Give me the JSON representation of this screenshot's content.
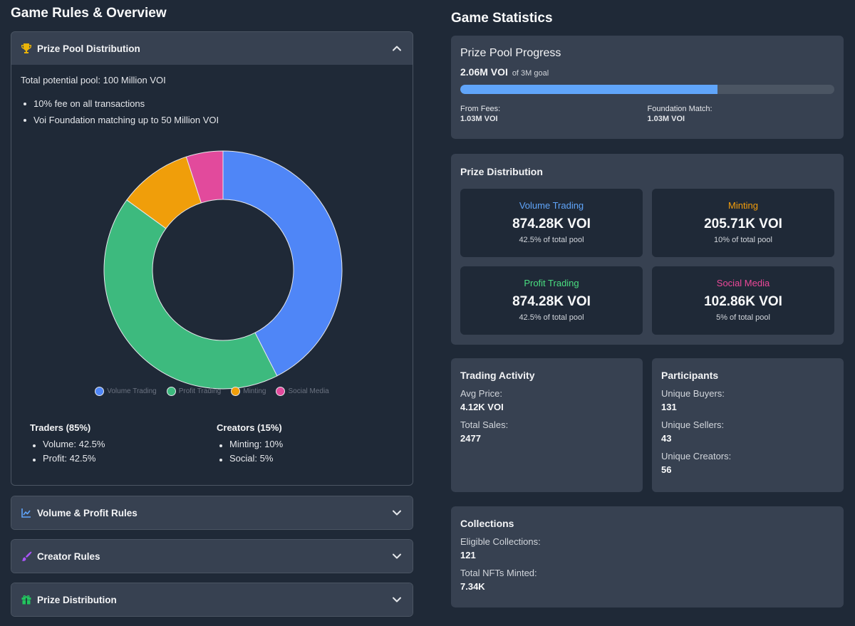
{
  "left": {
    "heading": "Game Rules & Overview",
    "prize_pool_section": {
      "title": "Prize Pool Distribution",
      "total_text": "Total potential pool: 100 Million VOI",
      "bullets": [
        "10% fee on all transactions",
        "Voi Foundation matching up to 50 Million VOI"
      ],
      "traders": {
        "title": "Traders (85%)",
        "items": [
          "Volume: 42.5%",
          "Profit: 42.5%"
        ]
      },
      "creators": {
        "title": "Creators (15%)",
        "items": [
          "Minting: 10%",
          "Social: 5%"
        ]
      }
    },
    "accordions": [
      {
        "title": "Volume & Profit Rules"
      },
      {
        "title": "Creator Rules"
      },
      {
        "title": "Prize Distribution"
      }
    ]
  },
  "chart_data": {
    "type": "pie",
    "variant": "doughnut",
    "categories": [
      "Volume Trading",
      "Profit Trading",
      "Minting",
      "Social Media"
    ],
    "values": [
      42.5,
      42.5,
      10,
      5
    ],
    "colors": [
      "#4f86f7",
      "#3dba7e",
      "#f09e0a",
      "#e24a9c"
    ],
    "legend_position": "bottom"
  },
  "right": {
    "heading": "Game Statistics",
    "progress": {
      "title": "Prize Pool Progress",
      "amount": "2.06M VOI",
      "goal": "of 3M goal",
      "fraction": 0.687,
      "from_fees_label": "From Fees:",
      "from_fees_value": "1.03M VOI",
      "foundation_label": "Foundation Match:",
      "foundation_value": "1.03M VOI"
    },
    "distribution": {
      "title": "Prize Distribution",
      "boxes": [
        {
          "label": "Volume Trading",
          "value": "874.28K VOI",
          "pct": "42.5% of total pool",
          "color": "#60a5fa"
        },
        {
          "label": "Minting",
          "value": "205.71K VOI",
          "pct": "10% of total pool",
          "color": "#f59e0b"
        },
        {
          "label": "Profit Trading",
          "value": "874.28K VOI",
          "pct": "42.5% of total pool",
          "color": "#4ade80"
        },
        {
          "label": "Social Media",
          "value": "102.86K VOI",
          "pct": "5% of total pool",
          "color": "#ec4899"
        }
      ]
    },
    "trading": {
      "title": "Trading Activity",
      "avg_label": "Avg Price:",
      "avg_value": "4.12K VOI",
      "sales_label": "Total Sales:",
      "sales_value": "2477"
    },
    "participants": {
      "title": "Participants",
      "buyers_label": "Unique Buyers:",
      "buyers_value": "131",
      "sellers_label": "Unique Sellers:",
      "sellers_value": "43",
      "creators_label": "Unique Creators:",
      "creators_value": "56"
    },
    "collections": {
      "title": "Collections",
      "eligible_label": "Eligible Collections:",
      "eligible_value": "121",
      "minted_label": "Total NFTs Minted:",
      "minted_value": "7.34K"
    }
  },
  "icons": {
    "trophy": "trophy-icon",
    "chart_line": "chart-line-icon",
    "brush": "paintbrush-icon",
    "gift": "gift-icon",
    "chevron_up": "chevron-up-icon",
    "chevron_down": "chevron-down-icon"
  }
}
